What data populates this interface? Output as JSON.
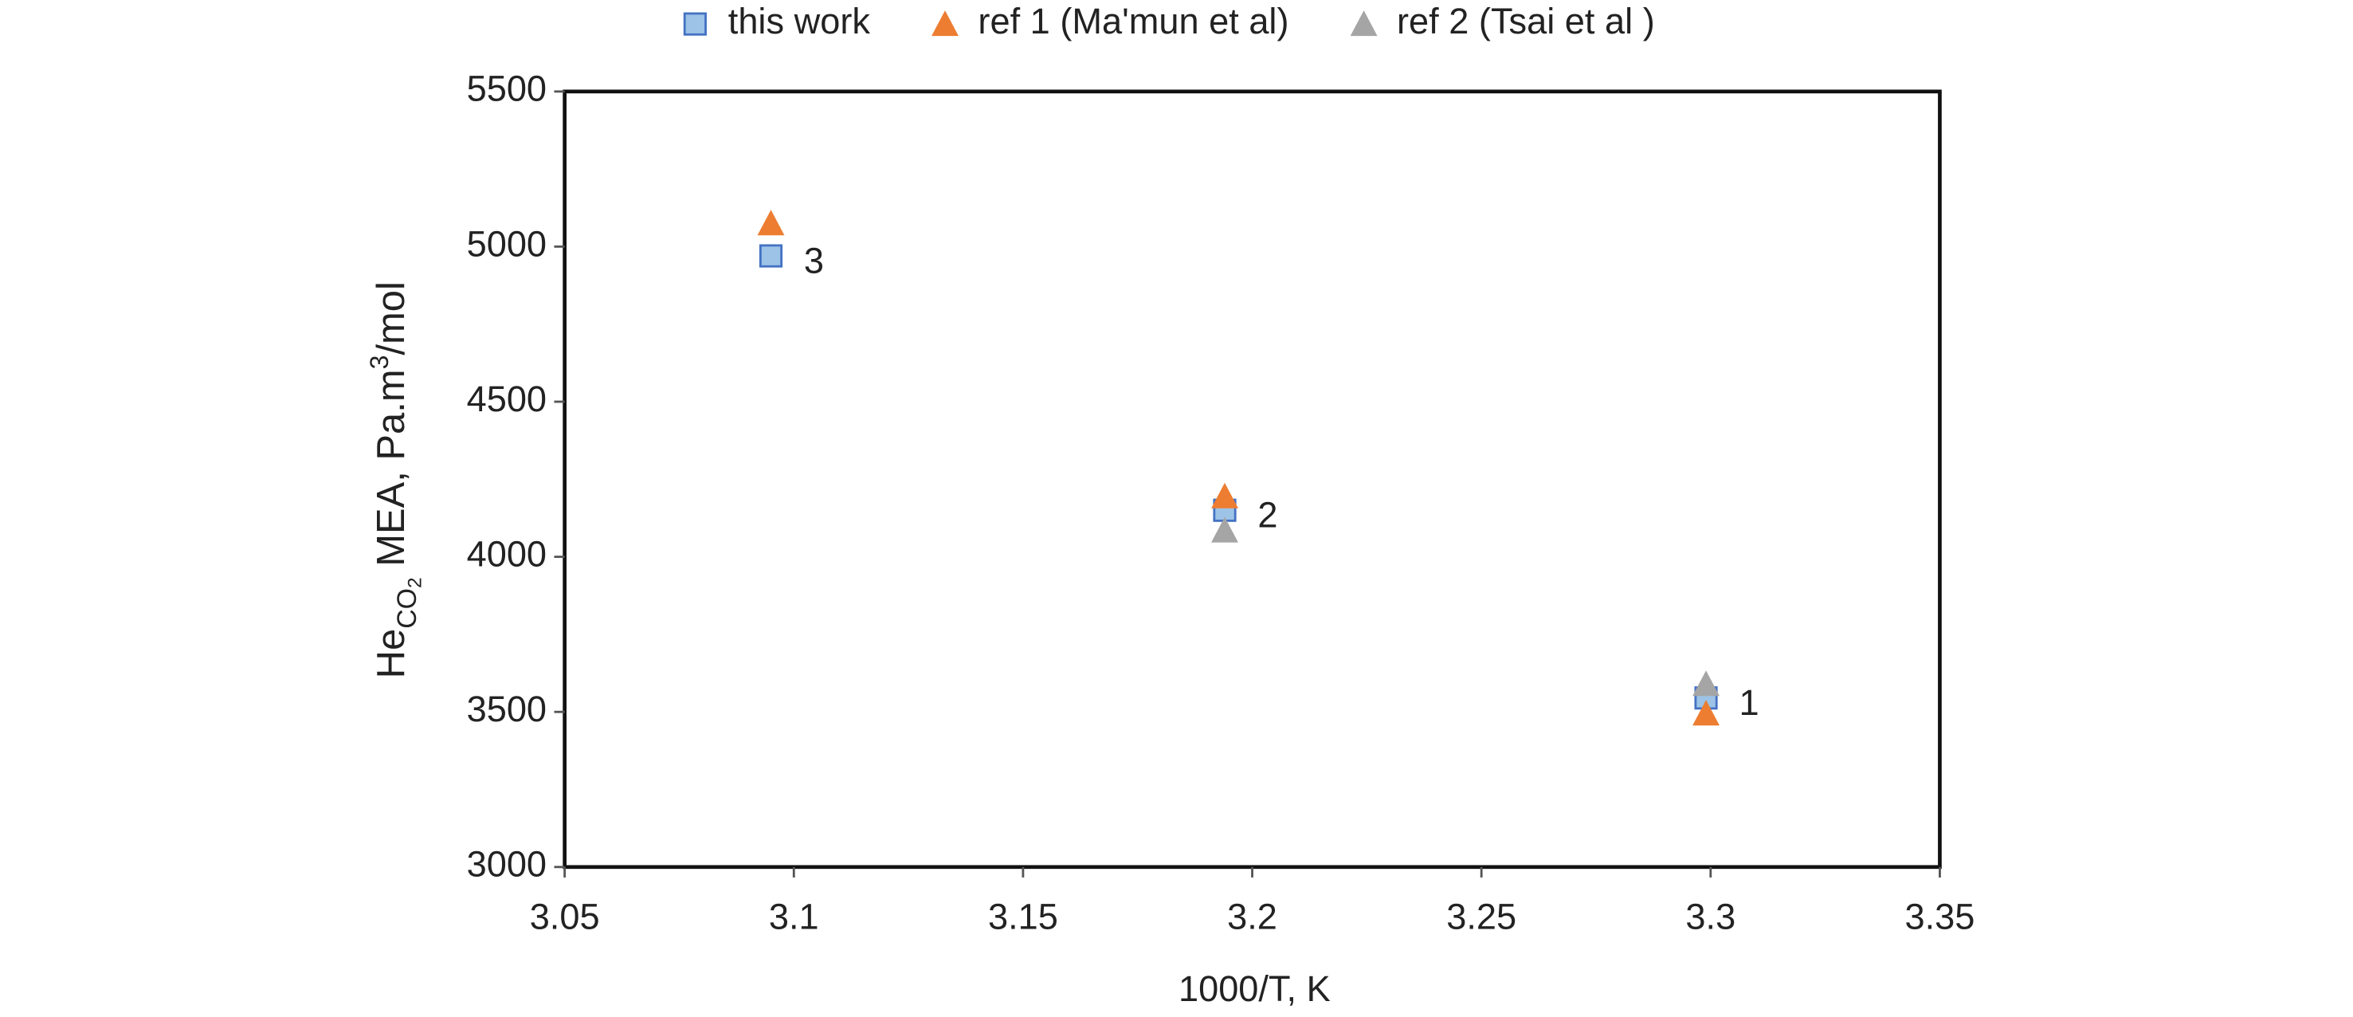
{
  "chart_data": {
    "type": "scatter",
    "xlabel": "1000/T, K",
    "ylabel": {
      "main": "He",
      "sub": "CO",
      "subsub": "2",
      "rest": " MEA, Pa.m",
      "sup": "3",
      "end": "/mol"
    },
    "xlim": [
      3.05,
      3.35
    ],
    "xticks": [
      3.05,
      3.1,
      3.15,
      3.2,
      3.25,
      3.3,
      3.35
    ],
    "ylim": [
      3000,
      5500
    ],
    "yticks": [
      3000,
      3500,
      4000,
      4500,
      5000,
      5500
    ],
    "grid": false,
    "legend": "top",
    "series": [
      {
        "name": "this work",
        "color": "#9dc3e6",
        "marker": "square",
        "x": [
          3.095,
          3.194,
          3.299
        ],
        "y": [
          4970,
          4150,
          3545
        ]
      },
      {
        "name": "ref 1 (Ma'mun et al)",
        "color": "#ed7d31",
        "marker": "triangle",
        "x": [
          3.095,
          3.194,
          3.299
        ],
        "y": [
          5075,
          4195,
          3495
        ]
      },
      {
        "name": "ref 2 (Tsai et al )",
        "color": "#a5a5a5",
        "marker": "triangle",
        "x": [
          3.194,
          3.299
        ],
        "y": [
          4085,
          3590
        ]
      }
    ],
    "annotations": [
      {
        "text": "3"
      },
      {
        "text": "2"
      },
      {
        "text": "1"
      }
    ]
  }
}
